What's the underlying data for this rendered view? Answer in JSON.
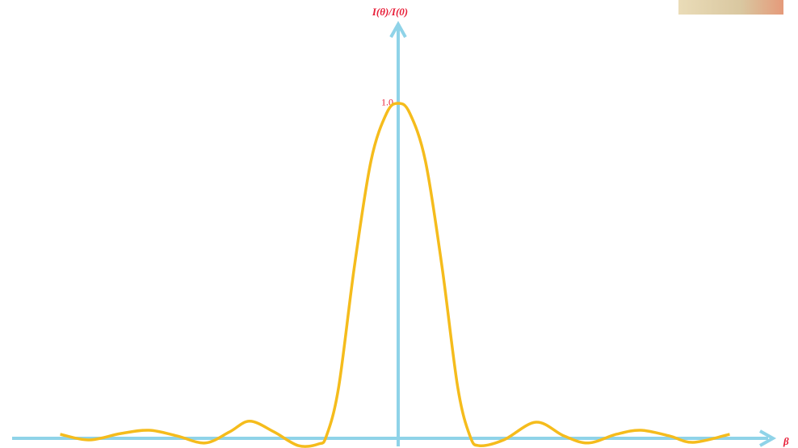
{
  "chart_data": {
    "type": "line",
    "y_label": "I(θ)/I(0)",
    "x_label": "β",
    "x": [
      -4.71,
      -4.31,
      -3.87,
      -3.47,
      -3.08,
      -2.69,
      -2.35,
      -2.07,
      -1.73,
      -1.39,
      -1.11,
      -1.0,
      -0.83,
      -0.61,
      -0.38,
      -0.16,
      0,
      0.16,
      0.38,
      0.61,
      0.83,
      1.0,
      1.13,
      1.47,
      1.92,
      2.31,
      2.65,
      3.04,
      3.38,
      3.78,
      4.11,
      4.62
    ],
    "values": [
      0.012,
      -0.005,
      0.014,
      0.024,
      0.007,
      -0.014,
      0.019,
      0.051,
      0.019,
      -0.022,
      -0.017,
      0.007,
      0.152,
      0.513,
      0.827,
      0.971,
      1.0,
      0.971,
      0.827,
      0.513,
      0.152,
      0.007,
      -0.022,
      -0.005,
      0.048,
      0.007,
      -0.014,
      0.012,
      0.024,
      0.007,
      -0.012,
      0.012
    ],
    "color": "#f5bc1c",
    "axis_color": "#8fd3e8",
    "label_color": "#e8203a",
    "xlim": [
      -5.38,
      5.2
    ],
    "ylim": [
      -0.029,
      1.236
    ],
    "yticks": [
      {
        "value": 1,
        "label": "1.0"
      }
    ]
  }
}
